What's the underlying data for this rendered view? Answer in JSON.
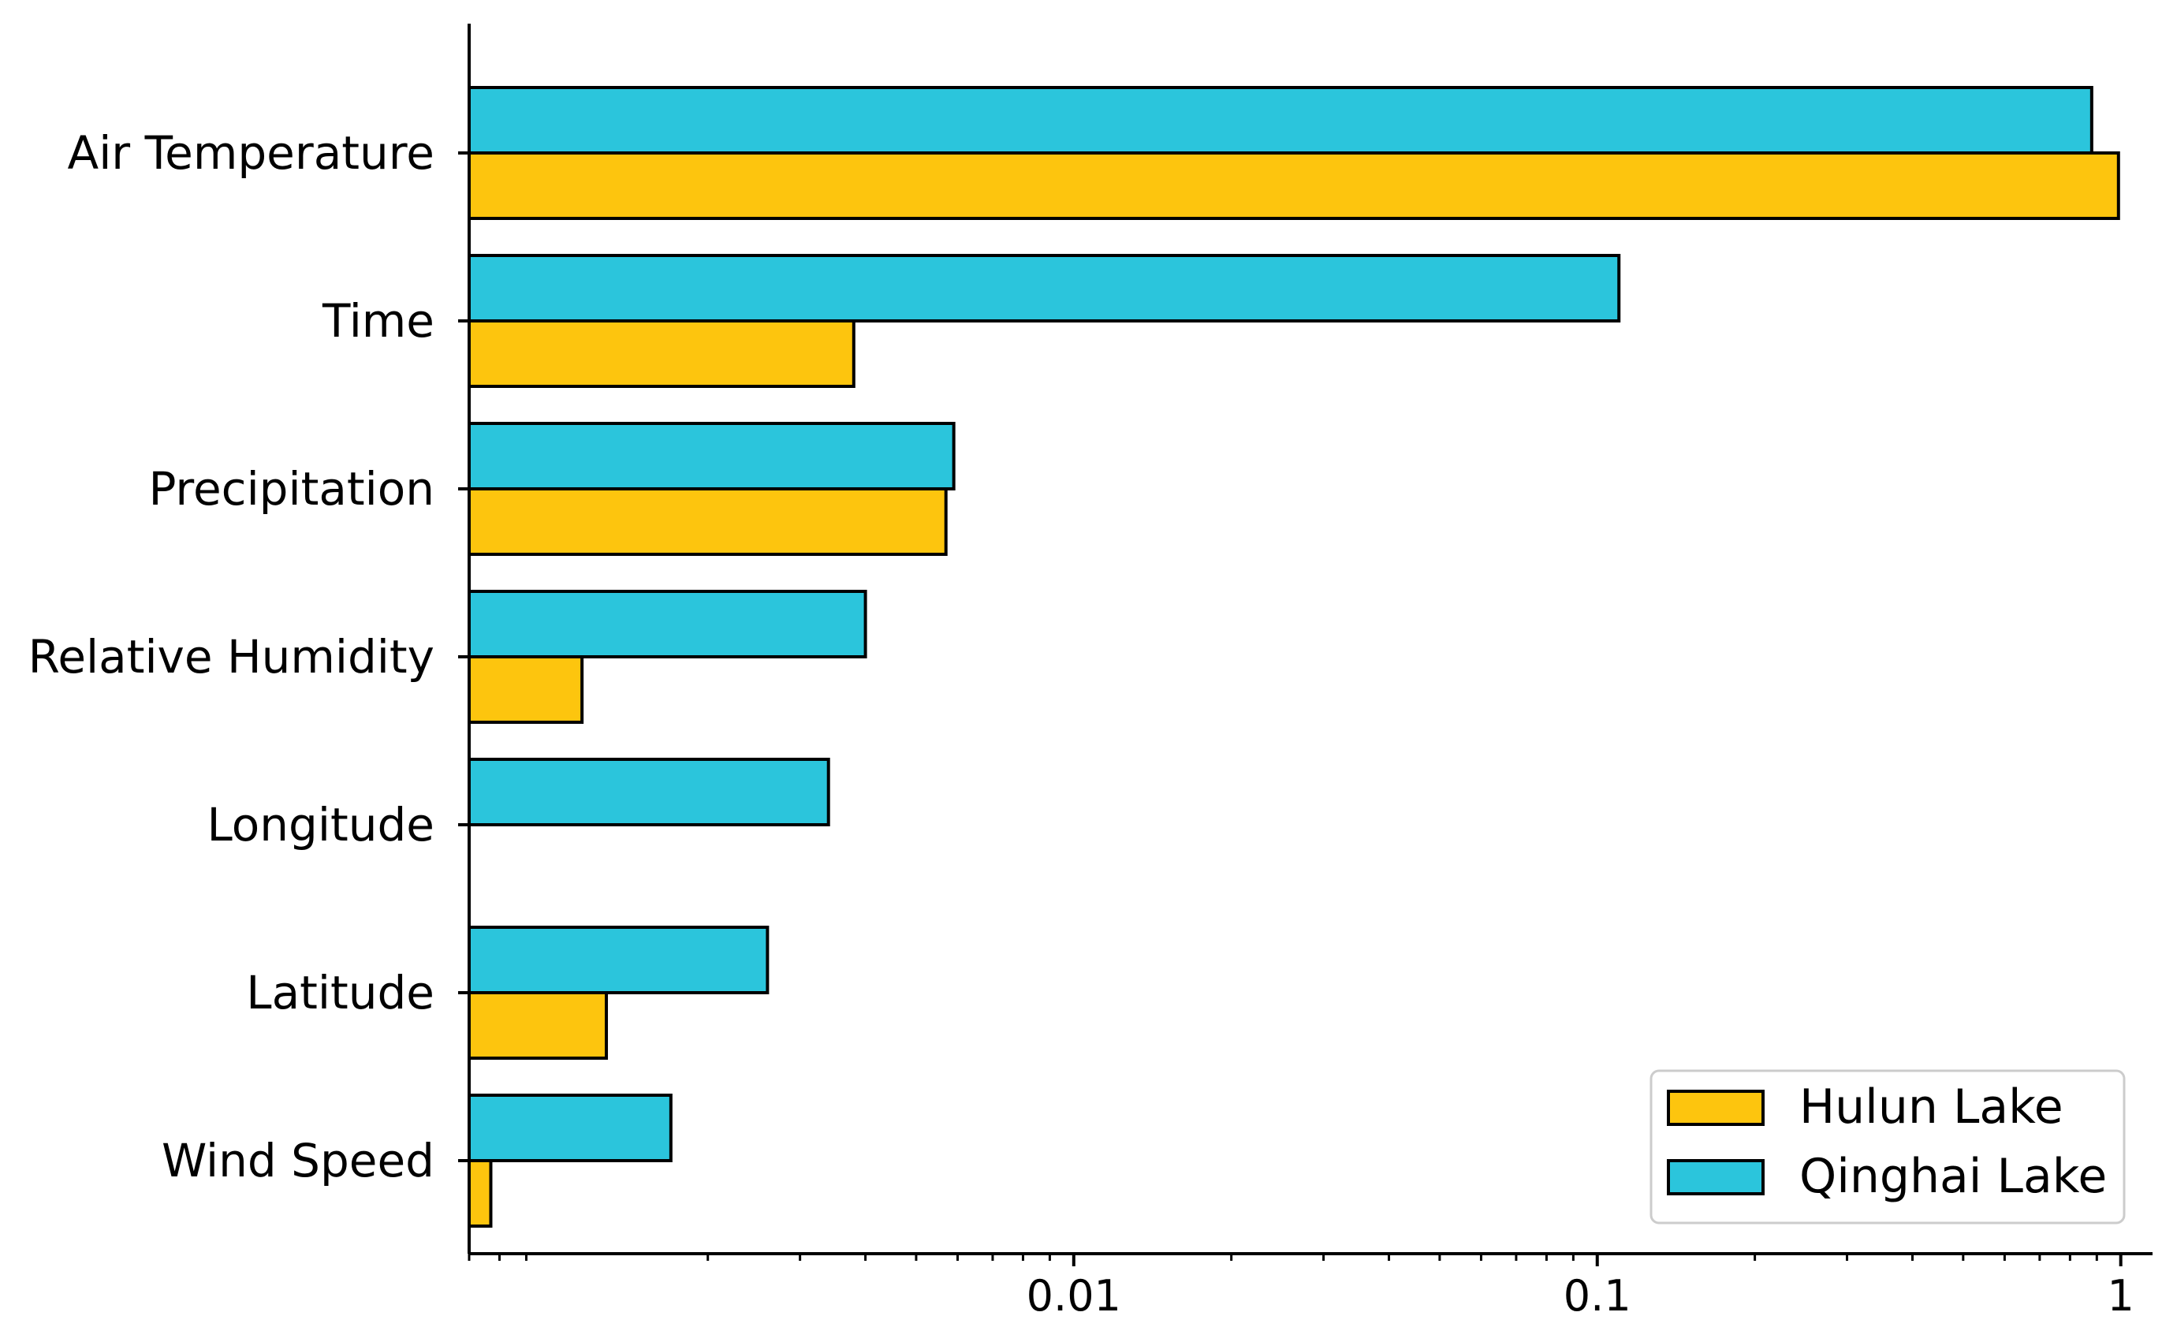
{
  "chart_data": {
    "type": "bar",
    "orientation": "horizontal",
    "xscale": "log",
    "xlim": [
      0.0007,
      1.15
    ],
    "xticks": [
      {
        "value": 0.01,
        "label": "0.01"
      },
      {
        "value": 0.1,
        "label": "0.1"
      },
      {
        "value": 1,
        "label": "1"
      }
    ],
    "categories": [
      "Air Temperature",
      "Time",
      "Precipitation",
      "Relative Humidity",
      "Longitude",
      "Latitude",
      "Wind Speed"
    ],
    "series": [
      {
        "name": "Qinghai Lake",
        "color": "#2BC5DC",
        "values": [
          0.88,
          0.11,
          0.0059,
          0.004,
          0.0034,
          0.0026,
          0.0017
        ]
      },
      {
        "name": "Hulun Lake",
        "color": "#FDC50E",
        "values": [
          0.99,
          0.0038,
          0.0057,
          0.00115,
          0.00064,
          0.00128,
          0.00077
        ]
      }
    ],
    "legend": {
      "position": "lower-right",
      "entries": [
        "Hulun Lake",
        "Qinghai Lake"
      ]
    },
    "grid": false,
    "title": "",
    "xlabel": "",
    "ylabel": ""
  }
}
